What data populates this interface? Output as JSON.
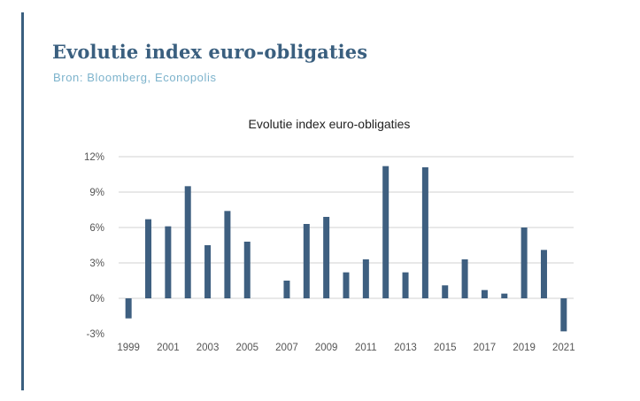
{
  "header": {
    "title": "Evolutie index euro-obligaties",
    "source": "Bron: Bloomberg, Econopolis"
  },
  "chart_data": {
    "type": "bar",
    "title": "Evolutie index euro-obligaties",
    "categories": [
      "1999",
      "2000",
      "2001",
      "2002",
      "2003",
      "2004",
      "2005",
      "2006",
      "2007",
      "2008",
      "2009",
      "2010",
      "2011",
      "2012",
      "2013",
      "2014",
      "2015",
      "2016",
      "2017",
      "2018",
      "2019",
      "2020",
      "2021"
    ],
    "x_tick_labels": [
      "1999",
      "2001",
      "2003",
      "2005",
      "2007",
      "2009",
      "2011",
      "2013",
      "2015",
      "2017",
      "2019",
      "2021"
    ],
    "y_tick_labels": [
      "12%",
      "9%",
      "6%",
      "3%",
      "0%",
      "-3%"
    ],
    "values": [
      -1.7,
      6.7,
      6.1,
      9.5,
      4.5,
      7.4,
      4.8,
      0.0,
      1.5,
      6.3,
      6.9,
      2.2,
      3.3,
      11.2,
      2.2,
      11.1,
      1.1,
      3.3,
      0.7,
      0.4,
      6.0,
      4.1,
      -2.8
    ],
    "ylim": [
      -3,
      12
    ],
    "y_unit": "%",
    "grid": true,
    "bar_color": "#3e5f80",
    "grid_color": "#d9d9d9"
  }
}
